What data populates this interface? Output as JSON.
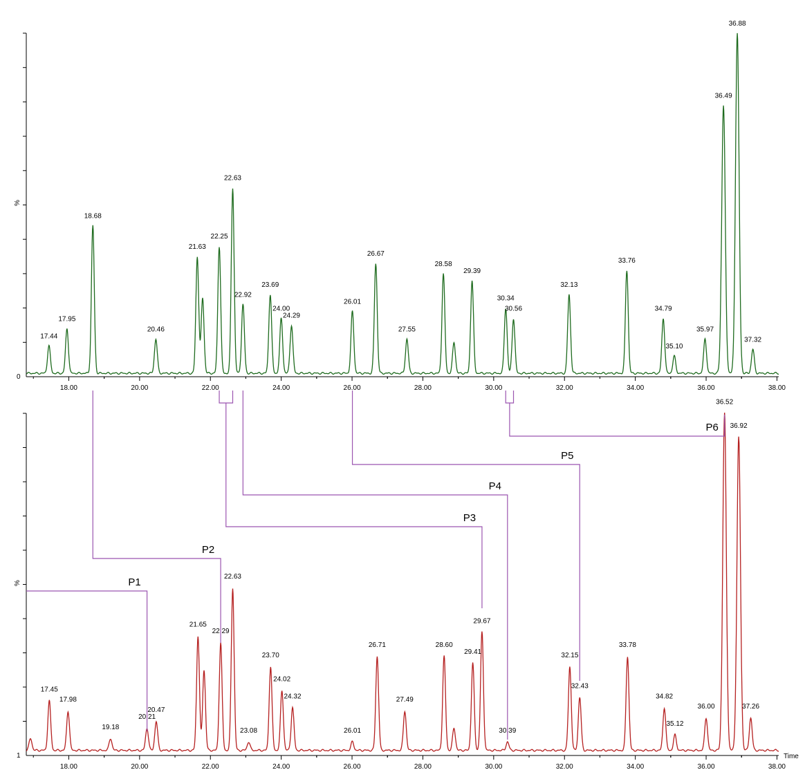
{
  "chart_data": [
    {
      "type": "line",
      "panel": "top",
      "color": "#1e6b1e",
      "xlabel": "",
      "ylabel": "%",
      "xlim": [
        16.8,
        38.05
      ],
      "y_scale_labels": [
        "0"
      ],
      "xticks": [
        "18.00",
        "20.00",
        "22.00",
        "24.00",
        "26.00",
        "28.00",
        "30.00",
        "32.00",
        "34.00",
        "36.00",
        "38.00"
      ],
      "baseline": 1.0,
      "peaks": [
        {
          "label": "17.44",
          "x": 17.44,
          "y": 9.0
        },
        {
          "label": "17.95",
          "x": 17.95,
          "y": 14.0
        },
        {
          "label": "18.68",
          "x": 18.68,
          "y": 44.0
        },
        {
          "label": "20.46",
          "x": 20.46,
          "y": 11.0
        },
        {
          "label": "21.63",
          "x": 21.63,
          "y": 35.0
        },
        {
          "x": 21.78,
          "y": 23.0
        },
        {
          "label": "22.25",
          "x": 22.25,
          "y": 38.0
        },
        {
          "label": "22.63",
          "x": 22.63,
          "y": 55.0
        },
        {
          "label": "22.92",
          "x": 22.92,
          "y": 21.0
        },
        {
          "label": "23.69",
          "x": 23.69,
          "y": 24.0
        },
        {
          "label": "24.00",
          "x": 24.0,
          "y": 17.0
        },
        {
          "label": "24.29",
          "x": 24.29,
          "y": 15.0
        },
        {
          "label": "26.01",
          "x": 26.01,
          "y": 19.0
        },
        {
          "label": "26.67",
          "x": 26.67,
          "y": 33.0
        },
        {
          "label": "27.55",
          "x": 27.55,
          "y": 11.0
        },
        {
          "label": "28.58",
          "x": 28.58,
          "y": 30.0
        },
        {
          "x": 28.88,
          "y": 10.0
        },
        {
          "label": "29.39",
          "x": 29.39,
          "y": 28.0
        },
        {
          "label": "30.34",
          "x": 30.34,
          "y": 20.0
        },
        {
          "label": "30.56",
          "x": 30.56,
          "y": 17.0
        },
        {
          "label": "32.13",
          "x": 32.13,
          "y": 24.0
        },
        {
          "label": "33.76",
          "x": 33.76,
          "y": 31.0
        },
        {
          "label": "34.79",
          "x": 34.79,
          "y": 17.0
        },
        {
          "label": "35.10",
          "x": 35.1,
          "y": 6.0
        },
        {
          "label": "35.97",
          "x": 35.97,
          "y": 11.0
        },
        {
          "label": "36.49",
          "x": 36.49,
          "y": 79.0
        },
        {
          "label": "36.88",
          "x": 36.88,
          "y": 100.0
        },
        {
          "label": "37.32",
          "x": 37.32,
          "y": 8.0
        }
      ]
    },
    {
      "type": "line",
      "panel": "bottom",
      "color": "#b52020",
      "xlabel": "Time",
      "ylabel": "%",
      "xlim": [
        16.8,
        38.05
      ],
      "y_scale_labels": [
        "1"
      ],
      "xticks": [
        "18.00",
        "20.00",
        "22.00",
        "24.00",
        "26.00",
        "28.00",
        "30.00",
        "32.00",
        "34.00",
        "36.00",
        "38.00"
      ],
      "baseline": 1.5,
      "peaks": [
        {
          "x": 16.92,
          "y": 5.0
        },
        {
          "label": "17.45",
          "x": 17.45,
          "y": 16.0
        },
        {
          "label": "17.98",
          "x": 17.98,
          "y": 13.0
        },
        {
          "label": "19.18",
          "x": 19.18,
          "y": 5.0
        },
        {
          "label": "20.21",
          "x": 20.21,
          "y": 8.0
        },
        {
          "label": "20.47",
          "x": 20.47,
          "y": 10.0
        },
        {
          "label": "21.65",
          "x": 21.65,
          "y": 35.0
        },
        {
          "x": 21.82,
          "y": 25.0
        },
        {
          "label": "22.29",
          "x": 22.29,
          "y": 33.0
        },
        {
          "label": "22.63",
          "x": 22.63,
          "y": 49.0
        },
        {
          "label": "23.08",
          "x": 23.08,
          "y": 4.0
        },
        {
          "label": "23.70",
          "x": 23.7,
          "y": 26.0
        },
        {
          "label": "24.02",
          "x": 24.02,
          "y": 19.0
        },
        {
          "label": "24.32",
          "x": 24.32,
          "y": 14.0
        },
        {
          "label": "26.01",
          "x": 26.01,
          "y": 4.0
        },
        {
          "label": "26.71",
          "x": 26.71,
          "y": 29.0
        },
        {
          "label": "27.49",
          "x": 27.49,
          "y": 13.0
        },
        {
          "label": "28.60",
          "x": 28.6,
          "y": 29.0
        },
        {
          "x": 28.88,
          "y": 8.0
        },
        {
          "label": "29.41",
          "x": 29.41,
          "y": 27.0
        },
        {
          "label": "29.67",
          "x": 29.67,
          "y": 36.0
        },
        {
          "label": "30.39",
          "x": 30.39,
          "y": 4.0
        },
        {
          "label": "32.15",
          "x": 32.15,
          "y": 26.0
        },
        {
          "label": "32.43",
          "x": 32.43,
          "y": 17.0
        },
        {
          "label": "33.78",
          "x": 33.78,
          "y": 29.0
        },
        {
          "label": "34.82",
          "x": 34.82,
          "y": 14.0
        },
        {
          "label": "35.12",
          "x": 35.12,
          "y": 6.0
        },
        {
          "label": "36.00",
          "x": 36.0,
          "y": 11.0
        },
        {
          "label": "36.52",
          "x": 36.52,
          "y": 100.0
        },
        {
          "label": "36.92",
          "x": 36.92,
          "y": 93.0
        },
        {
          "label": "37.26",
          "x": 37.26,
          "y": 11.0
        }
      ]
    }
  ],
  "annotations": {
    "color": "#9b55b0",
    "connectors": [
      {
        "label": "P1",
        "from_x": 16.8,
        "to_x": 20.21
      },
      {
        "label": "P2",
        "from_x": 18.68,
        "to_x": 22.29
      },
      {
        "label": "P3",
        "from_x": 22.44,
        "to_x": 29.67
      },
      {
        "label": "P4",
        "from_x": 22.92,
        "to_x": 30.39
      },
      {
        "label": "P5",
        "from_x": 26.01,
        "to_x": 32.43
      },
      {
        "label": "P6",
        "from_x": 30.45,
        "to_x": 36.52
      }
    ]
  }
}
